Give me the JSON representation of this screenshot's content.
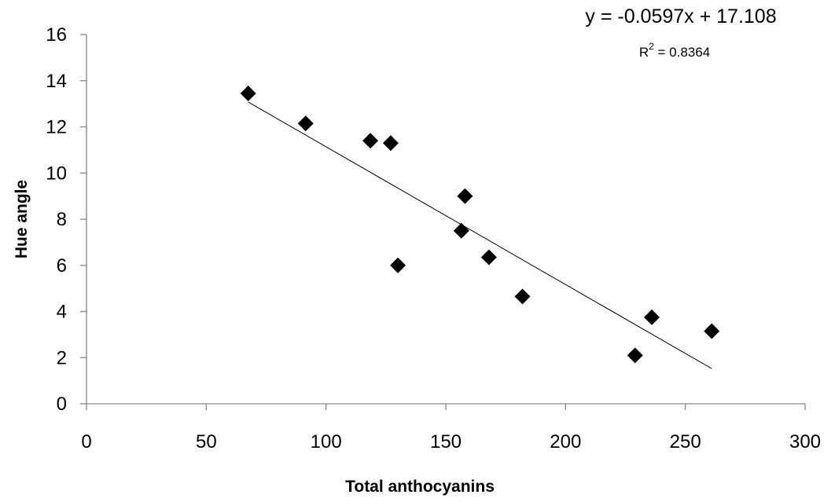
{
  "chart_data": {
    "type": "scatter",
    "title": "",
    "xlabel": "Total anthocyanins",
    "ylabel": "Hue angle",
    "xlim": [
      0,
      300
    ],
    "ylim": [
      0,
      16
    ],
    "x_ticks": [
      0,
      50,
      100,
      150,
      200,
      250,
      300
    ],
    "y_ticks": [
      0,
      2,
      4,
      6,
      8,
      10,
      12,
      14,
      16
    ],
    "x_tick_labels": [
      "0",
      "50",
      "100",
      "150",
      "200",
      "250",
      "300"
    ],
    "y_tick_labels": [
      "0",
      "2",
      "4",
      "6",
      "8",
      "10",
      "12",
      "14",
      "16"
    ],
    "grid": false,
    "legend": "none",
    "marker": "diamond",
    "marker_color": "#000000",
    "series": [
      {
        "x": [
          67.5,
          91.5,
          118.5,
          127,
          130,
          156.5,
          158,
          168,
          182,
          229,
          236,
          261
        ],
        "y": [
          13.45,
          12.15,
          11.4,
          11.3,
          6.0,
          7.5,
          9.0,
          6.35,
          4.65,
          2.1,
          3.75,
          3.15
        ]
      }
    ],
    "trendline": {
      "type": "linear",
      "slope": -0.0597,
      "intercept": 17.108,
      "x_range": [
        67.5,
        261
      ],
      "color": "#000000",
      "equation_label": "y = -0.0597x + 17.108",
      "r2_prefix": "R",
      "r2_superscript": "2",
      "r2_value": " = 0.8364"
    }
  }
}
